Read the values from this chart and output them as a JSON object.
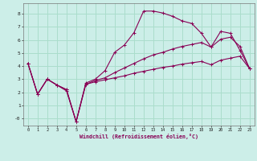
{
  "xlabel": "Windchill (Refroidissement éolien,°C)",
  "bg_color": "#cceee8",
  "grid_color": "#aaddcc",
  "line_color": "#880055",
  "xlim": [
    -0.5,
    23.5
  ],
  "ylim": [
    -0.55,
    8.8
  ],
  "xticks": [
    0,
    1,
    2,
    3,
    4,
    5,
    6,
    7,
    8,
    9,
    10,
    11,
    12,
    13,
    14,
    15,
    16,
    17,
    18,
    19,
    20,
    21,
    22,
    23
  ],
  "yticks": [
    0,
    1,
    2,
    3,
    4,
    5,
    6,
    7,
    8
  ],
  "ytick_labels": [
    "-0",
    "1",
    "2",
    "3",
    "4",
    "5",
    "6",
    "7",
    "8"
  ],
  "curve1_x": [
    0,
    1,
    2,
    3,
    4,
    5,
    6,
    7,
    8,
    9,
    10,
    11,
    12,
    13,
    14,
    15,
    16,
    17,
    18,
    19,
    20,
    21,
    22,
    23
  ],
  "curve1_y": [
    4.2,
    1.85,
    3.0,
    2.55,
    2.1,
    -0.25,
    2.7,
    3.0,
    3.65,
    5.05,
    5.6,
    6.55,
    8.2,
    8.2,
    8.05,
    7.8,
    7.45,
    7.25,
    6.5,
    5.45,
    6.65,
    6.5,
    5.2,
    3.8
  ],
  "curve2_x": [
    0,
    1,
    2,
    3,
    4,
    5,
    6,
    7,
    8,
    9,
    10,
    11,
    12,
    13,
    14,
    15,
    16,
    17,
    18,
    19,
    20,
    21,
    22,
    23
  ],
  "curve2_y": [
    4.2,
    1.85,
    3.0,
    2.55,
    2.2,
    -0.25,
    2.6,
    2.9,
    3.1,
    3.5,
    3.85,
    4.2,
    4.55,
    4.85,
    5.05,
    5.3,
    5.5,
    5.65,
    5.8,
    5.45,
    6.05,
    6.2,
    5.5,
    3.8
  ],
  "curve3_x": [
    0,
    1,
    2,
    3,
    4,
    5,
    6,
    7,
    8,
    9,
    10,
    11,
    12,
    13,
    14,
    15,
    16,
    17,
    18,
    19,
    20,
    21,
    22,
    23
  ],
  "curve3_y": [
    4.2,
    1.85,
    3.0,
    2.55,
    2.2,
    -0.25,
    2.6,
    2.8,
    2.95,
    3.1,
    3.25,
    3.45,
    3.6,
    3.75,
    3.9,
    4.0,
    4.15,
    4.25,
    4.35,
    4.1,
    4.45,
    4.6,
    4.75,
    3.8
  ]
}
